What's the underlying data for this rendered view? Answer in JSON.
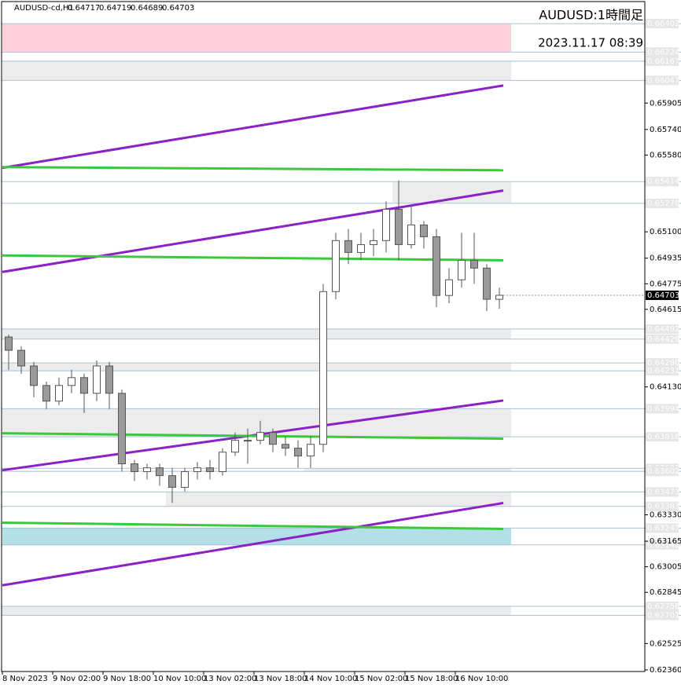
{
  "chart_data": {
    "type": "candlestick",
    "symbol": "AUDUSD-cd,H1",
    "header_values": [
      0.64717,
      0.64719,
      0.64689,
      0.64703
    ],
    "title": "AUDUSD:1時間足",
    "subtitle": "2023.11.17 08:39",
    "ylim": [
      0.6235,
      0.6654
    ],
    "yticks": [
      {
        "value": 0.65905,
        "label": "0.65905"
      },
      {
        "value": 0.6574,
        "label": "0.65740"
      },
      {
        "value": 0.6558,
        "label": "0.65580"
      },
      {
        "value": 0.651,
        "label": "0.65100"
      },
      {
        "value": 0.64935,
        "label": "0.64935"
      },
      {
        "value": 0.64775,
        "label": "0.64775"
      },
      {
        "value": 0.64615,
        "label": "0.64615"
      },
      {
        "value": 0.6413,
        "label": "0.64130"
      },
      {
        "value": 0.6333,
        "label": "0.63330"
      },
      {
        "value": 0.63165,
        "label": "0.63165"
      },
      {
        "value": 0.63005,
        "label": "0.63005"
      },
      {
        "value": 0.62845,
        "label": "0.62845"
      },
      {
        "value": 0.62525,
        "label": "0.62525"
      },
      {
        "value": 0.6236,
        "label": "0.62360"
      }
    ],
    "xticks": [
      {
        "value": 0,
        "label": "8 Nov 2023"
      },
      {
        "value": 4,
        "label": "9 Nov 02:00"
      },
      {
        "value": 8,
        "label": "9 Nov 18:00"
      },
      {
        "value": 12,
        "label": "10 Nov 10:00"
      },
      {
        "value": 16,
        "label": "13 Nov 02:00"
      },
      {
        "value": 20,
        "label": "13 Nov 18:00"
      },
      {
        "value": 24,
        "label": "14 Nov 10:00"
      },
      {
        "value": 28,
        "label": "15 Nov 02:00"
      },
      {
        "value": 32,
        "label": "15 Nov 18:00"
      },
      {
        "value": 36,
        "label": "16 Nov 10:00"
      }
    ],
    "last": 0.64703,
    "zones": [
      {
        "from": 0.66402,
        "to": 0.66224,
        "labels": [
          "0.66402",
          "0.66224"
        ],
        "color": "#ffd1dc",
        "start": 0
      },
      {
        "from": 0.66167,
        "to": 0.66047,
        "labels": [
          "0.66167",
          "0.66047"
        ],
        "color": "#ececec",
        "start": 0
      },
      {
        "from": 0.65414,
        "to": 0.65278,
        "labels": [
          "0.65414",
          "0.65278"
        ],
        "color": "#ececec",
        "start": 31
      },
      {
        "from": 0.64492,
        "to": 0.64429,
        "labels": [
          "0.64492",
          "0.64429"
        ],
        "color": "#ececec",
        "start": 0
      },
      {
        "from": 0.6428,
        "to": 0.64231,
        "labels": [
          "0.64280",
          "0.64231"
        ],
        "color": "#ececec",
        "start": 0
      },
      {
        "from": 0.63994,
        "to": 0.63818,
        "labels": [
          "0.63994",
          "0.63818"
        ],
        "color": "#ececec",
        "start": 0
      },
      {
        "from": 0.63621,
        "to": 0.63602,
        "labels": [
          "0.63621",
          "0.63602"
        ],
        "color": "#ececec",
        "start": 24
      },
      {
        "from": 0.63473,
        "to": 0.63383,
        "labels": [
          "0.63473",
          "0.63383"
        ],
        "color": "#ececec",
        "start": 13
      },
      {
        "from": 0.63247,
        "to": 0.63142,
        "labels": [
          "0.63247",
          "0.63142"
        ],
        "color": "#b3dfe6",
        "start": 0
      },
      {
        "from": 0.62758,
        "to": 0.62701,
        "labels": [
          "0.62758",
          "0.62701"
        ],
        "color": "#ececec",
        "start": 0
      }
    ],
    "trendlines": [
      {
        "from": 0.655,
        "to": 0.66015,
        "color": "#8b1fc8"
      },
      {
        "from": 0.64849,
        "to": 0.65358,
        "color": "#8b1fc8"
      },
      {
        "from": 0.63609,
        "to": 0.64045,
        "color": "#8b1fc8"
      },
      {
        "from": 0.62889,
        "to": 0.63404,
        "color": "#8b1fc8"
      },
      {
        "from": 0.65505,
        "to": 0.65485,
        "color": "#3cc83c"
      },
      {
        "from": 0.64952,
        "to": 0.64922,
        "color": "#3cc83c"
      },
      {
        "from": 0.6384,
        "to": 0.63806,
        "color": "#3cc83c"
      },
      {
        "from": 0.63281,
        "to": 0.63242,
        "color": "#3cc83c"
      }
    ],
    "open": [
      0.64442,
      0.64359,
      0.64261,
      0.64139,
      0.64041,
      0.64139,
      0.64188,
      0.6409,
      0.64261,
      0.6409,
      0.63649,
      0.636,
      0.63624,
      0.63575,
      0.63502,
      0.636,
      0.63624,
      0.636,
      0.63722,
      0.63796,
      0.63796,
      0.63845,
      0.63771,
      0.63747,
      0.63698,
      0.63771,
      0.64726,
      0.65045,
      0.64971,
      0.6502,
      0.65045,
      0.65241,
      0.6502,
      0.65143,
      0.65069,
      0.64702,
      0.648,
      0.64922,
      0.64873,
      0.64678
    ],
    "high": [
      0.64457,
      0.64384,
      0.64286,
      0.64163,
      0.64188,
      0.64237,
      0.64212,
      0.64295,
      0.64286,
      0.64114,
      0.63673,
      0.63649,
      0.63649,
      0.63624,
      0.63624,
      0.63659,
      0.63673,
      0.63747,
      0.63845,
      0.63869,
      0.63918,
      0.63869,
      0.6382,
      0.63796,
      0.6382,
      0.64775,
      0.65094,
      0.65118,
      0.65094,
      0.65118,
      0.6529,
      0.65422,
      0.65265,
      0.65167,
      0.65118,
      0.64873,
      0.65094,
      0.65094,
      0.64898,
      0.64751
    ],
    "low": [
      0.64237,
      0.64212,
      0.64065,
      0.63992,
      0.64016,
      0.6409,
      0.63967,
      0.64041,
      0.63992,
      0.636,
      0.63541,
      0.63551,
      0.63512,
      0.63404,
      0.63477,
      0.63551,
      0.63551,
      0.63575,
      0.63698,
      0.63649,
      0.63771,
      0.63722,
      0.63698,
      0.63624,
      0.63624,
      0.63722,
      0.64678,
      0.64898,
      0.64922,
      0.64947,
      0.64971,
      0.64922,
      0.64996,
      0.64996,
      0.64629,
      0.64653,
      0.64751,
      0.64775,
      0.64604,
      0.64619
    ],
    "close": [
      0.64359,
      0.64261,
      0.64139,
      0.64041,
      0.64139,
      0.64188,
      0.6409,
      0.64261,
      0.6409,
      0.63649,
      0.636,
      0.63624,
      0.63575,
      0.63502,
      0.636,
      0.63624,
      0.636,
      0.63722,
      0.63796,
      0.63796,
      0.63845,
      0.63771,
      0.63747,
      0.63698,
      0.63771,
      0.64726,
      0.65045,
      0.64971,
      0.6502,
      0.65045,
      0.65241,
      0.6502,
      0.65143,
      0.65069,
      0.64702,
      0.648,
      0.64922,
      0.64873,
      0.64678,
      0.64703
    ]
  }
}
